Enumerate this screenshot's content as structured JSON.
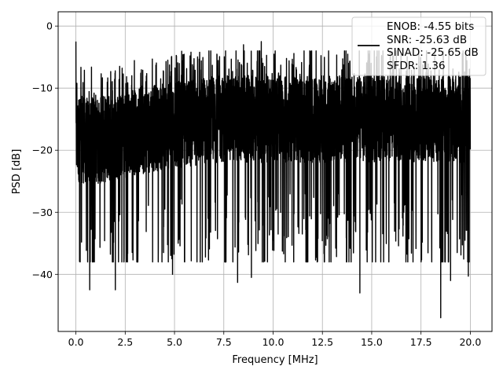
{
  "chart_data": {
    "type": "line",
    "xlabel": "Frequency [MHz]",
    "ylabel": "PSD [dB]",
    "xlim": [
      -0.9,
      21.1
    ],
    "ylim": [
      -49.2,
      2.3
    ],
    "xticks": [
      0.0,
      2.5,
      5.0,
      7.5,
      10.0,
      12.5,
      15.0,
      17.5,
      20.0
    ],
    "xtick_labels": [
      "0.0",
      "2.5",
      "5.0",
      "7.5",
      "10.0",
      "12.5",
      "15.0",
      "17.5",
      "20.0"
    ],
    "yticks": [
      0,
      -10,
      -20,
      -30,
      -40
    ],
    "ytick_labels": [
      "0",
      "−10",
      "−20",
      "−30",
      "−40"
    ],
    "grid": true,
    "legend_position": "top-right",
    "series": [
      {
        "name": "ENOB: -4.55 bits\nSNR: -25.63 dB\nSINAD: -25.65 dB\nSFDR: 1.36",
        "color": "#000000",
        "x_range": [
          0.0,
          20.0
        ],
        "envelope_x": [
          0,
          0.5,
          1,
          2,
          3,
          4,
          5,
          6,
          7,
          8,
          9,
          10,
          11,
          12,
          13,
          14,
          15,
          16,
          17,
          18,
          19,
          20
        ],
        "envelope_mean": [
          -18,
          -18.5,
          -18.5,
          -18,
          -17,
          -16.5,
          -16,
          -15.5,
          -15,
          -15,
          -15,
          -15,
          -15,
          -15,
          -15,
          -15,
          -15,
          -15,
          -15,
          -15,
          -15,
          -15
        ],
        "peaks": [
          {
            "x": 0.0,
            "y": -2.5
          },
          {
            "x": 8.5,
            "y": -3.0
          },
          {
            "x": 9.4,
            "y": -2.5
          },
          {
            "x": 18.5,
            "y": -47.0
          },
          {
            "x": 14.4,
            "y": -43.0
          },
          {
            "x": 0.7,
            "y": -42.5
          },
          {
            "x": 2.0,
            "y": -42.5
          },
          {
            "x": 8.2,
            "y": -41.3
          },
          {
            "x": 19.0,
            "y": -41.0
          },
          {
            "x": 4.9,
            "y": -40.0
          },
          {
            "x": 8.9,
            "y": -40.5
          },
          {
            "x": 19.9,
            "y": -40.3
          }
        ]
      }
    ],
    "legend_entries": [
      "ENOB: -4.55 bits",
      "SNR: -25.63 dB",
      "SINAD: -25.65 dB",
      "SFDR: 1.36"
    ]
  }
}
